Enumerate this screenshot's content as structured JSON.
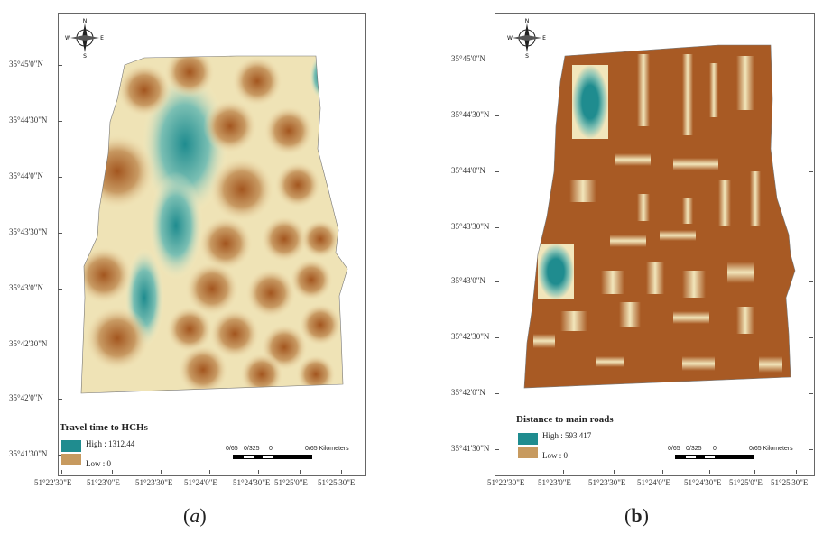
{
  "panels": [
    {
      "caption_open": "(",
      "caption_letter": "a",
      "caption_close": ")",
      "legend": {
        "title": "Travel time to HCHs",
        "high_label": "High : 1312.44",
        "low_label": "Low : 0",
        "high_color": "#1f8c8f",
        "low_color": "#a85a24"
      },
      "lat_labels": [
        "35°45'0\"N",
        "35°44'30\"N",
        "35°44'0\"N",
        "35°43'30\"N",
        "35°43'0\"N",
        "35°42'30\"N",
        "35°42'0\"N",
        "35°41'30\"N"
      ],
      "lon_labels": [
        "51°22'30\"E",
        "51°23'0\"E",
        "51°23'30\"E",
        "51°24'0\"E",
        "51°24'30\"E",
        "51°25'0\"E",
        "51°25'30\"E"
      ],
      "scale_labels": [
        "0/65",
        "0/325",
        "0",
        "0/65 Kilometers"
      ],
      "compass": {
        "n": "N",
        "s": "S",
        "e": "E",
        "w": "W"
      }
    },
    {
      "caption_open": "(",
      "caption_letter": "b",
      "caption_close": ")",
      "legend": {
        "title": "Distance to main roads",
        "high_label": "High : 593 417",
        "low_label": "Low : 0",
        "high_color": "#1f8c8f",
        "low_color": "#a85a24"
      },
      "lat_labels": [
        "35°45'0\"N",
        "35°44'30\"N",
        "35°44'0\"N",
        "35°43'30\"N",
        "35°43'0\"N",
        "35°42'30\"N",
        "35°42'0\"N",
        "35°41'30\"N"
      ],
      "lon_labels": [
        "51°22'30\"E",
        "51°23'0\"E",
        "51°23'30\"E",
        "51°24'0\"E",
        "51°24'30\"E",
        "51°25'0\"E",
        "51°25'30\"E"
      ],
      "scale_labels": [
        "0/65",
        "0/325",
        "0",
        "0/65 Kilometers"
      ],
      "compass": {
        "n": "N",
        "s": "S",
        "e": "E",
        "w": "W"
      }
    }
  ]
}
